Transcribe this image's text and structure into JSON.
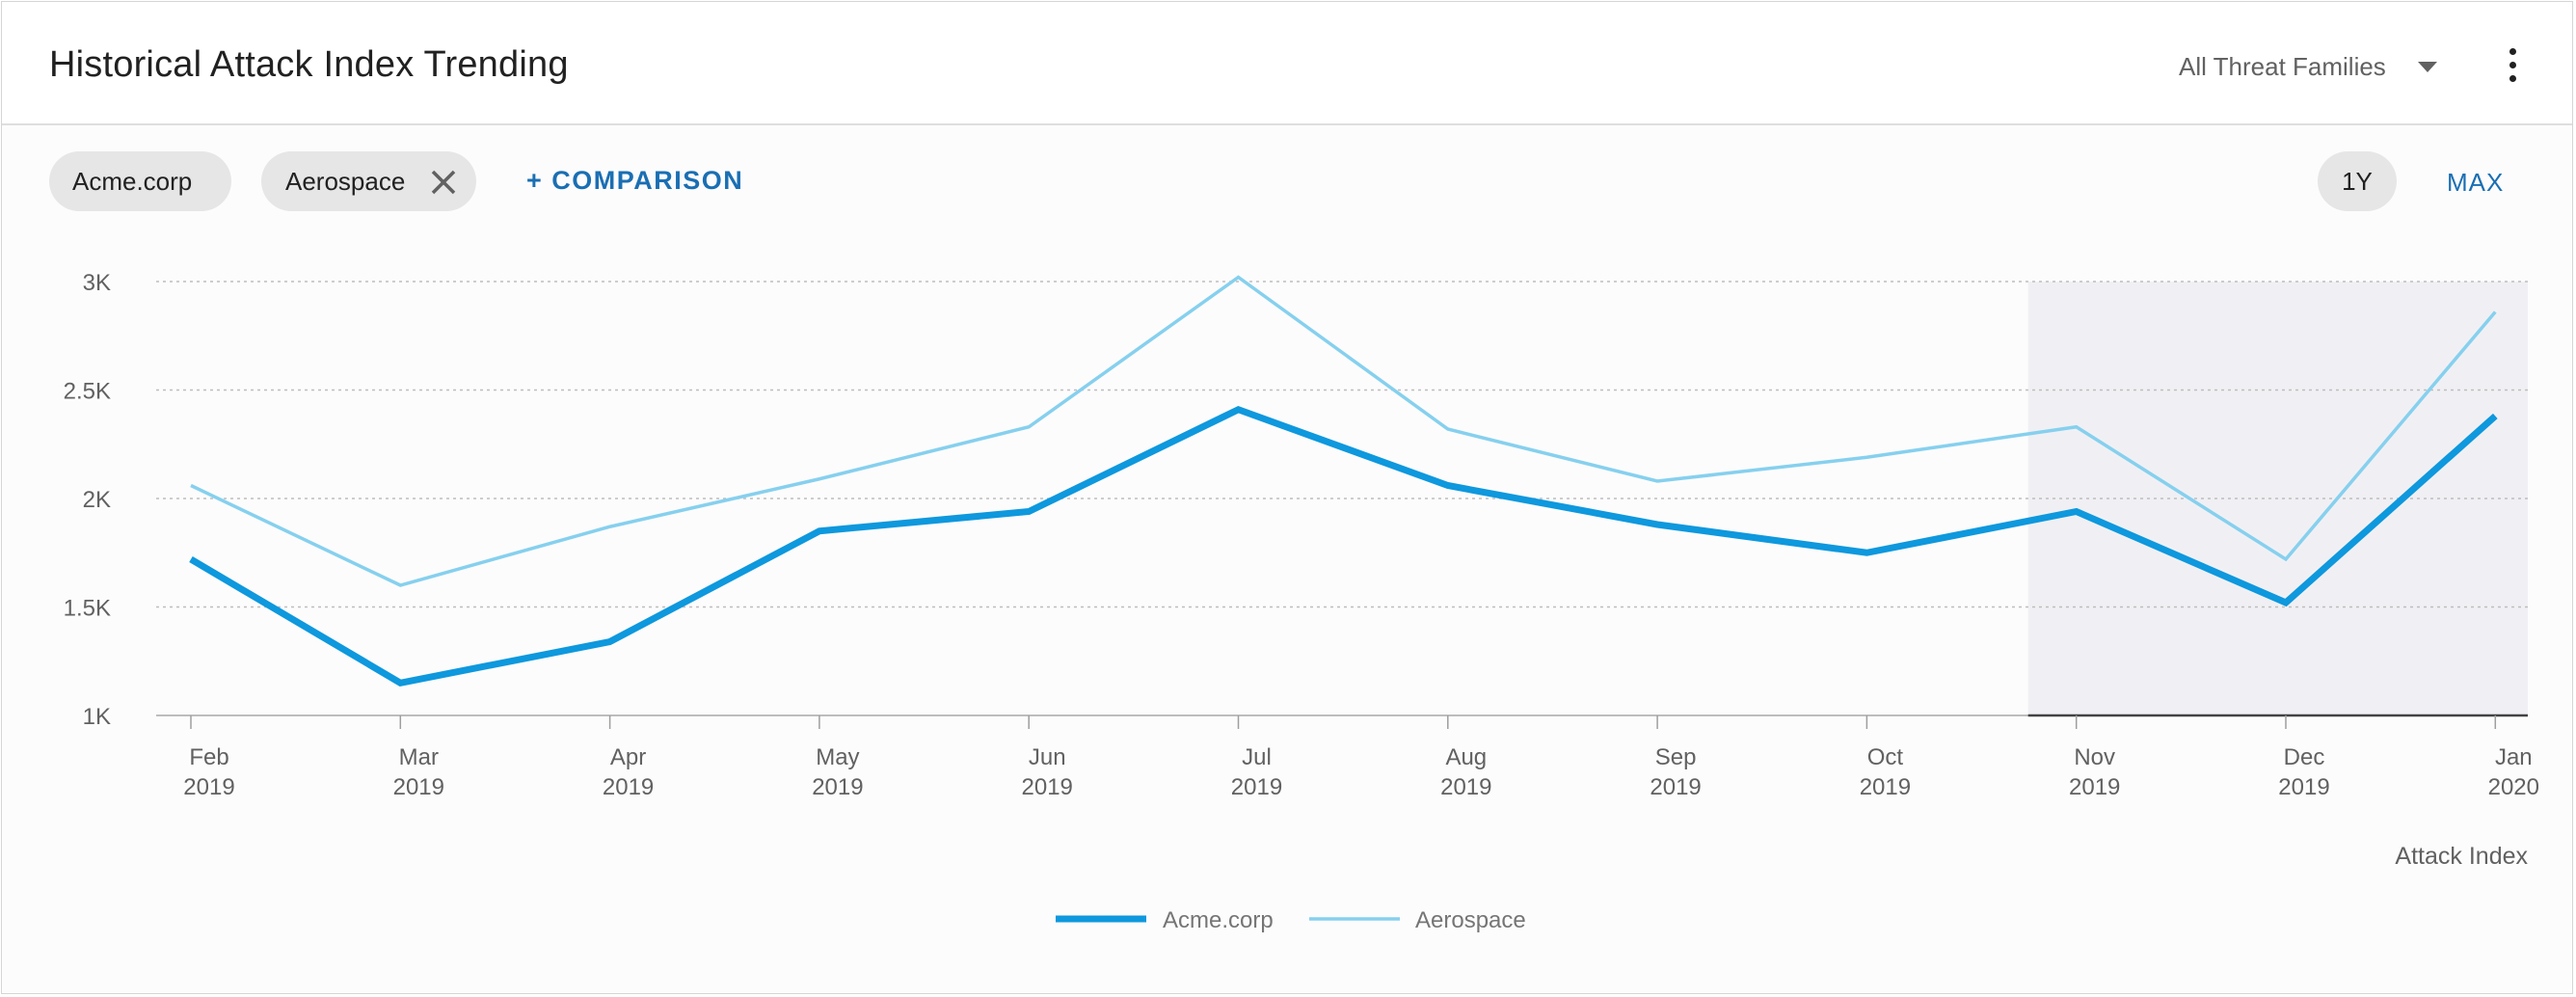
{
  "header": {
    "title": "Historical Attack Index Trending",
    "filter_label": "All Threat Families"
  },
  "toolbar": {
    "chips": [
      "Acme.corp",
      "Aerospace"
    ],
    "comparison_label": "+ COMPARISON",
    "range_options": [
      "1Y",
      "MAX"
    ],
    "selected_range": "1Y"
  },
  "colors": {
    "acme": "#0e98dd",
    "aerospace": "#86d0ee",
    "accent": "#1a6fb3",
    "highlight_band": "#f0f0f4"
  },
  "chart_data": {
    "type": "line",
    "title": "",
    "xlabel": "",
    "ylabel": "Attack Index",
    "categories": [
      [
        "Feb",
        "2019"
      ],
      [
        "Mar",
        "2019"
      ],
      [
        "Apr",
        "2019"
      ],
      [
        "May",
        "2019"
      ],
      [
        "Jun",
        "2019"
      ],
      [
        "Jul",
        "2019"
      ],
      [
        "Aug",
        "2019"
      ],
      [
        "Sep",
        "2019"
      ],
      [
        "Oct",
        "2019"
      ],
      [
        "Nov",
        "2019"
      ],
      [
        "Dec",
        "2019"
      ],
      [
        "Jan",
        "2020"
      ]
    ],
    "y_ticks": [
      "1K",
      "1.5K",
      "2K",
      "2.5K",
      "3K"
    ],
    "y_tick_values": [
      1000,
      1500,
      2000,
      2500,
      3000
    ],
    "ylim": [
      1000,
      3000
    ],
    "grid": true,
    "legend_position": "bottom",
    "highlight_from_category": "Nov",
    "series": [
      {
        "name": "Acme.corp",
        "values": [
          1720,
          1150,
          1340,
          1850,
          1940,
          2410,
          2060,
          1880,
          1750,
          1940,
          1520,
          2380
        ]
      },
      {
        "name": "Aerospace",
        "values": [
          2060,
          1600,
          1870,
          2090,
          2330,
          3020,
          2320,
          2080,
          2190,
          2330,
          1720,
          2860
        ]
      }
    ]
  }
}
